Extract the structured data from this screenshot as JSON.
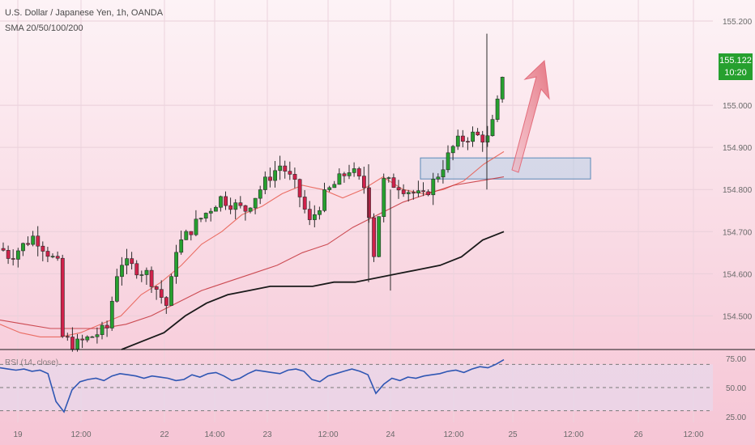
{
  "header": {
    "title": "U.S. Dollar / Japanese Yen, 1h, OANDA",
    "indicators": "SMA 20/50/100/200"
  },
  "price_tag": {
    "price": "155.122",
    "countdown": "10:20"
  },
  "colors": {
    "bg_top": "#fdf3f6",
    "bg_bottom": "#f5c3d3",
    "up": "#26a02f",
    "down": "#d0214a",
    "sma20": "#e75b4d",
    "sma50": "#c4323a",
    "sma200": "#1a1a1a",
    "rsi": "#2f56b3",
    "zone": "#a9cbe6",
    "arrow": "#e98692"
  },
  "rsi_label": "RSI (14, close)",
  "chart_data": [
    {
      "type": "candlestick",
      "title": "U.S. Dollar / Japanese Yen, 1h, OANDA",
      "ylim": [
        154.42,
        155.25
      ],
      "yticks": [
        "155.200",
        "155.000",
        "154.900",
        "154.800",
        "154.700",
        "154.600",
        "154.500"
      ],
      "xticks": [
        "19",
        "12:00",
        "22",
        "14:00",
        "23",
        "12:00",
        "24",
        "12:00",
        "25",
        "12:00",
        "26",
        "12:00"
      ],
      "last_price": 155.122,
      "series": [
        {
          "name": "SMA 20",
          "values": [
            154.48,
            154.46,
            154.45,
            154.45,
            154.46,
            154.48,
            154.5,
            154.55,
            154.58,
            154.62,
            154.67,
            154.7,
            154.74,
            154.76,
            154.79,
            154.81,
            154.8,
            154.78,
            154.8,
            154.83,
            154.8,
            154.79,
            154.8,
            154.82,
            154.86,
            154.89
          ]
        },
        {
          "name": "SMA 50",
          "values": [
            154.49,
            154.48,
            154.47,
            154.47,
            154.47,
            154.48,
            154.5,
            154.53,
            154.56,
            154.58,
            154.6,
            154.62,
            154.65,
            154.67,
            154.71,
            154.74,
            154.77,
            154.79,
            154.81,
            154.82,
            154.83
          ]
        },
        {
          "name": "SMA 200",
          "values": [
            154.42,
            154.44,
            154.46,
            154.5,
            154.53,
            154.55,
            154.56,
            154.57,
            154.57,
            154.57,
            154.58,
            154.58,
            154.59,
            154.6,
            154.61,
            154.62,
            154.64,
            154.68,
            154.7
          ]
        }
      ],
      "zone": {
        "top": 154.875,
        "bottom": 154.825
      },
      "annotation": "upward arrow"
    },
    {
      "type": "line",
      "title": "RSI (14, close)",
      "ylim": [
        20,
        80
      ],
      "yticks": [
        "75.00",
        "50.00",
        "25.00"
      ],
      "levels": [
        70,
        50,
        30
      ],
      "values": [
        67,
        66,
        65,
        66,
        64,
        65,
        62,
        38,
        29,
        48,
        55,
        57,
        58,
        56,
        60,
        62,
        61,
        60,
        58,
        60,
        59,
        58,
        56,
        57,
        61,
        59,
        62,
        63,
        60,
        56,
        58,
        62,
        65,
        64,
        63,
        62,
        65,
        66,
        64,
        57,
        55,
        60,
        62,
        64,
        66,
        64,
        61,
        45,
        53,
        58,
        56,
        59,
        58,
        60,
        61,
        62,
        64,
        65,
        63,
        66,
        68,
        67,
        70,
        74
      ]
    }
  ]
}
